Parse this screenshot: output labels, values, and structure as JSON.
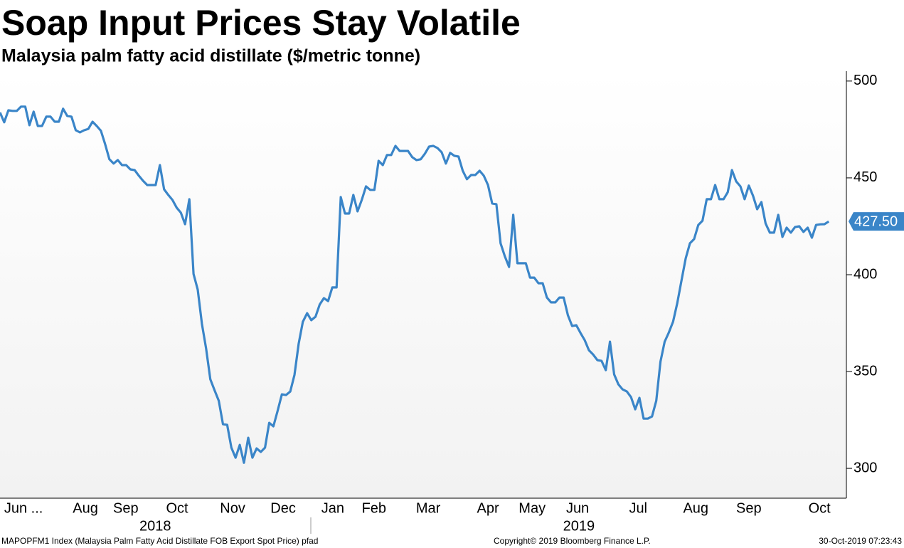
{
  "chart_data": {
    "type": "line",
    "title": "Soap Input Prices Stay Volatile",
    "subtitle": "Malaysia palm fatty acid distillate ($/metric tonne)",
    "series": [
      {
        "name": "MAPOPFM1 Index",
        "color": "#3a85c8",
        "values": [
          483.8,
          478.7,
          484.9,
          484.6,
          484.6,
          486.8,
          486.8,
          477.2,
          484.2,
          476.8,
          476.8,
          481.6,
          481.6,
          479,
          479,
          485.7,
          482,
          481.6,
          474.6,
          473.5,
          474.6,
          475.3,
          479,
          476.8,
          474.3,
          467.3,
          459.6,
          457.4,
          459.2,
          456.6,
          456.6,
          454.4,
          454,
          451.1,
          448.5,
          446.3,
          446.3,
          446.3,
          456.6,
          444.1,
          441.2,
          438.6,
          434.6,
          432,
          426.1,
          439,
          400.4,
          392.3,
          374.6,
          361.8,
          346,
          340.4,
          334.9,
          322.8,
          322.5,
          310.7,
          305.5,
          312.1,
          302.9,
          315.8,
          305.5,
          310.3,
          308.5,
          310.7,
          323.5,
          321.7,
          329.8,
          338.2,
          337.9,
          339.7,
          348.2,
          364.3,
          375.7,
          380.1,
          376.5,
          378.3,
          384.6,
          387.9,
          386.4,
          393.4,
          393.4,
          440.1,
          431.6,
          431.6,
          441.2,
          432.7,
          438.6,
          445.6,
          443.8,
          443.8,
          458.8,
          456.6,
          461.8,
          461.8,
          466.5,
          463.9,
          463.9,
          463.9,
          460.7,
          459.2,
          459.6,
          462.5,
          466.2,
          466.5,
          465.4,
          463.2,
          457.4,
          462.9,
          461.4,
          461,
          453.7,
          449.3,
          451.5,
          451.5,
          453.7,
          451.1,
          446.3,
          436.8,
          436.4,
          416.2,
          409.6,
          404,
          430.9,
          405.9,
          405.9,
          405.9,
          398.5,
          398.5,
          395.6,
          395.6,
          388.2,
          385.7,
          385.7,
          388.2,
          388.2,
          379,
          373.5,
          373.9,
          369.9,
          366.2,
          361,
          358.8,
          355.9,
          355.5,
          350.7,
          365.4,
          348.5,
          343.4,
          340.8,
          339.7,
          336.8,
          330.5,
          336.4,
          325.7,
          325.7,
          326.8,
          334.9,
          355.1,
          365.4,
          370.2,
          375.7,
          385.3,
          397.1,
          408.5,
          416.2,
          418.4,
          425.7,
          427.9,
          439,
          439,
          446.3,
          439,
          439,
          442.6,
          454,
          448.2,
          445.6,
          439,
          446,
          440.8,
          433.8,
          437.5,
          426.5,
          421.7,
          421.7,
          430.9,
          419.5,
          424.3,
          421.7,
          424.6,
          425,
          422.1,
          424.3,
          419.1,
          425.7,
          426,
          426.1,
          427.5
        ]
      }
    ],
    "last_value_label": "427.50",
    "xlim": [
      0,
      201.2
    ],
    "xticks": [
      {
        "value": 5.6,
        "label": "Jun ..."
      },
      {
        "value": 20.3,
        "label": "Aug"
      },
      {
        "value": 29.9,
        "label": "Sep"
      },
      {
        "value": 42.1,
        "label": "Oct"
      },
      {
        "value": 55.3,
        "label": "Nov"
      },
      {
        "value": 67.3,
        "label": "Dec"
      },
      {
        "value": 79.1,
        "label": "Jan"
      },
      {
        "value": 88.9,
        "label": "Feb"
      },
      {
        "value": 101.8,
        "label": "Mar"
      },
      {
        "value": 116,
        "label": "Apr"
      },
      {
        "value": 126.5,
        "label": "May"
      },
      {
        "value": 137.3,
        "label": "Jun"
      },
      {
        "value": 151.7,
        "label": "Jul"
      },
      {
        "value": 165.4,
        "label": "Aug"
      },
      {
        "value": 178,
        "label": "Sep"
      },
      {
        "value": 194.8,
        "label": "Oct"
      }
    ],
    "year_labels": [
      {
        "value": 36.9,
        "label": "2018"
      },
      {
        "value": 137.6,
        "label": "2019"
      }
    ],
    "ylim": [
      284.6,
      505.1
    ],
    "yticks": [
      300,
      350,
      400,
      450,
      500
    ],
    "footer_source": "MAPOPFM1 Index (Malaysia Palm Fatty Acid Distillate FOB Export Spot Price) pfad",
    "footer_copyright": "Copyright© 2019 Bloomberg Finance L.P.",
    "footer_timestamp": "30-Oct-2019 07:23:43"
  }
}
